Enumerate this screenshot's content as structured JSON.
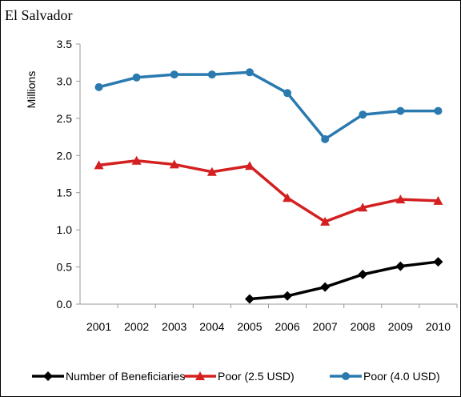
{
  "chart_data": {
    "type": "line",
    "title": "El Salvador",
    "y_label": "Millions",
    "categories": [
      "2001",
      "2002",
      "2003",
      "2004",
      "2005",
      "2006",
      "2007",
      "2008",
      "2009",
      "2010"
    ],
    "series": [
      {
        "name": "Number of Beneficiaries",
        "color": "#000000",
        "marker": "diamond",
        "values": [
          null,
          null,
          null,
          null,
          0.07,
          0.11,
          0.23,
          0.4,
          0.51,
          0.57
        ]
      },
      {
        "name": "Poor (2.5 USD)",
        "color": "#d42020",
        "marker": "triangle",
        "values": [
          1.87,
          1.93,
          1.88,
          1.78,
          1.86,
          1.43,
          1.11,
          1.3,
          1.41,
          1.39
        ]
      },
      {
        "name": "Poor (4.0 USD)",
        "color": "#2a7ab0",
        "marker": "circle",
        "values": [
          2.92,
          3.05,
          3.09,
          3.09,
          3.12,
          2.84,
          2.22,
          2.55,
          2.6,
          2.6
        ]
      }
    ],
    "ylim": [
      0,
      3.5
    ],
    "yticks": [
      {
        "value": 0,
        "label": "0.0"
      },
      0.5,
      {
        "value": 1,
        "label": "1.0"
      },
      1.5,
      {
        "value": 2,
        "label": "2.0"
      },
      2.5,
      {
        "value": 3,
        "label": "3.0"
      },
      3.5
    ],
    "grid": false,
    "legend": "bottom"
  }
}
